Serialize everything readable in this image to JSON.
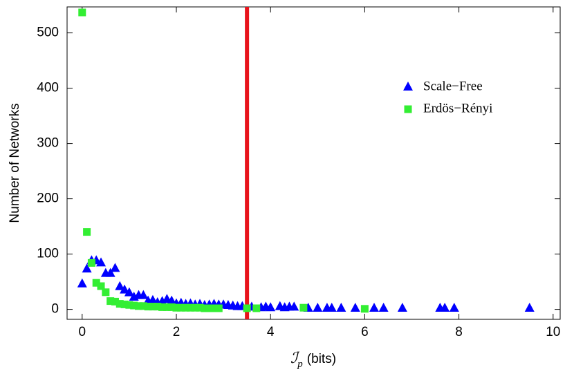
{
  "chart_data": {
    "type": "scatter",
    "x_label": {
      "symbol": "ℐ",
      "subscript": "p",
      "unit": "(bits)"
    },
    "y_label": "Number of Networks",
    "xlim": [
      -0.32,
      10.15
    ],
    "ylim": [
      -18,
      547
    ],
    "xticks": [
      0,
      2,
      4,
      6,
      8,
      10
    ],
    "yticks": [
      0,
      100,
      200,
      300,
      400,
      500
    ],
    "legend": "upper-right",
    "reference_line": {
      "x": 3.5,
      "color": "#e8141c"
    },
    "series": [
      {
        "name": "Scale−Free",
        "color": "#0000ff",
        "marker": "triangle",
        "x": [
          0,
          0.1,
          0.2,
          0.3,
          0.4,
          0.5,
          0.6,
          0.7,
          0.8,
          0.9,
          1.0,
          1.1,
          1.2,
          1.3,
          1.4,
          1.5,
          1.6,
          1.7,
          1.8,
          1.9,
          2.0,
          2.1,
          2.2,
          2.3,
          2.4,
          2.5,
          2.6,
          2.7,
          2.8,
          2.9,
          3.0,
          3.1,
          3.2,
          3.3,
          3.4,
          3.6,
          3.8,
          3.9,
          4.0,
          4.2,
          4.3,
          4.4,
          4.5,
          4.8,
          5.0,
          5.2,
          5.3,
          5.5,
          5.8,
          6.2,
          6.4,
          6.8,
          7.6,
          7.7,
          7.9,
          9.5
        ],
        "values": [
          46,
          73,
          88,
          88,
          84,
          65,
          65,
          74,
          41,
          35,
          30,
          22,
          25,
          25,
          15,
          16,
          12,
          14,
          18,
          15,
          10,
          11,
          9,
          10,
          8,
          9,
          7,
          8,
          9,
          8,
          8,
          7,
          6,
          5,
          5,
          4,
          3,
          4,
          3,
          5,
          3,
          4,
          4,
          2,
          2,
          2,
          2,
          2,
          2,
          2,
          2,
          2,
          2,
          2,
          2,
          2
        ]
      },
      {
        "name": "Erdös−Rényi",
        "color": "#33ee33",
        "marker": "square",
        "x": [
          0,
          0.1,
          0.2,
          0.3,
          0.4,
          0.5,
          0.6,
          0.7,
          0.8,
          0.9,
          1.0,
          1.1,
          1.2,
          1.3,
          1.4,
          1.5,
          1.6,
          1.7,
          1.8,
          1.9,
          2.0,
          2.1,
          2.2,
          2.3,
          2.4,
          2.5,
          2.6,
          2.7,
          2.8,
          2.9,
          3.5,
          3.7,
          4.7,
          6.0
        ],
        "values": [
          537,
          140,
          84,
          48,
          42,
          31,
          15,
          14,
          10,
          9,
          8,
          7,
          6,
          6,
          5,
          5,
          5,
          4,
          4,
          4,
          3,
          3,
          3,
          3,
          3,
          3,
          2,
          2,
          2,
          2,
          2,
          2,
          3,
          1
        ]
      }
    ]
  }
}
